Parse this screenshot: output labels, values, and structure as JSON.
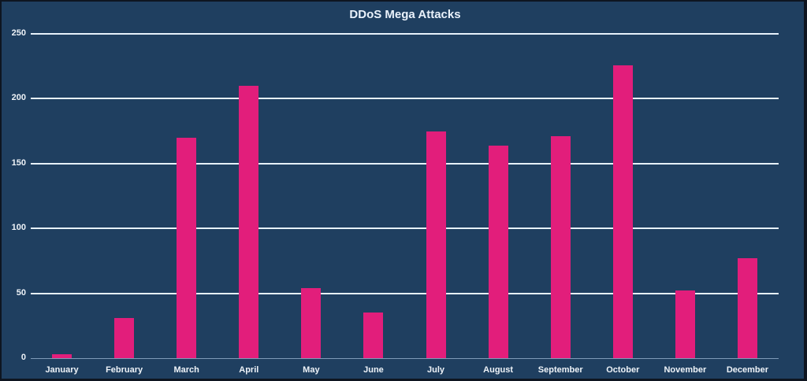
{
  "chart_data": {
    "type": "bar",
    "title": "DDoS Mega Attacks",
    "xlabel": "",
    "ylabel": "",
    "categories": [
      "January",
      "February",
      "March",
      "April",
      "May",
      "June",
      "July",
      "August",
      "September",
      "October",
      "November",
      "December"
    ],
    "values": [
      3,
      31,
      170,
      210,
      54,
      35,
      175,
      164,
      171,
      226,
      52,
      77
    ],
    "ylim": [
      0,
      250
    ],
    "yticks": [
      0,
      50,
      100,
      150,
      200,
      250
    ],
    "grid": true,
    "legend": null,
    "colors": {
      "background": "#1f3f60",
      "bar": "#e21e7b",
      "grid": "#e6f1fb",
      "text": "#eef3f8"
    }
  }
}
